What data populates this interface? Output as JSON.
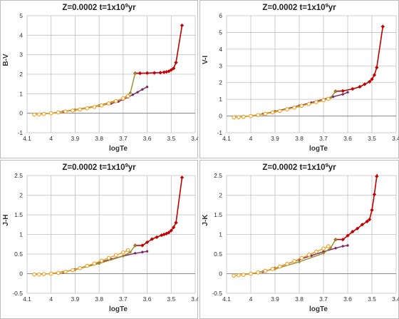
{
  "chart_data": [
    {
      "type": "line",
      "title": "Z=0.0002   t=1x10⁹yr",
      "title_base": "Z=0.0002   t=1x10",
      "title_exp": "9",
      "title_unit": "yr",
      "xlabel": "logTe",
      "ylabel": "B-V",
      "xlim": [
        4.1,
        3.4
      ],
      "ylim": [
        -1,
        5
      ],
      "x_ticks": [
        4.1,
        4,
        3.9,
        3.8,
        3.7,
        3.6,
        3.5,
        3.4
      ],
      "x_tick_labels": [
        "4.1",
        "4",
        "3.9",
        "3.8",
        "3.7",
        "3.6",
        "3.5",
        "3.4"
      ],
      "y_ticks": [
        -1,
        0,
        1,
        2,
        3,
        4,
        5
      ],
      "y_tick_labels": [
        "-1",
        "0",
        "1",
        "2",
        "3",
        "4",
        "5"
      ],
      "grid": true,
      "series": [
        {
          "color": "#c00000",
          "marker": "diamond",
          "x": [
            3.65,
            3.63,
            3.6,
            3.57,
            3.545,
            3.53,
            3.52,
            3.51,
            3.5,
            3.49,
            3.48,
            3.455
          ],
          "y": [
            2.05,
            2.05,
            2.06,
            2.07,
            2.08,
            2.1,
            2.12,
            2.15,
            2.22,
            2.3,
            2.6,
            4.5
          ]
        },
        {
          "color": "#7a2a66",
          "marker": "dot",
          "x": [
            4.0,
            3.95,
            3.9,
            3.85,
            3.8,
            3.75,
            3.72,
            3.7,
            3.68,
            3.66,
            3.64,
            3.62,
            3.6
          ],
          "y": [
            0.0,
            0.08,
            0.17,
            0.27,
            0.38,
            0.5,
            0.6,
            0.7,
            0.82,
            0.95,
            1.08,
            1.22,
            1.35
          ]
        },
        {
          "color": "#9c8a25",
          "marker": "dot",
          "x": [
            4.0,
            3.9,
            3.8,
            3.7,
            3.67,
            3.65
          ],
          "y": [
            0.0,
            0.18,
            0.4,
            0.75,
            1.05,
            2.05
          ]
        },
        {
          "color": "#f0a020",
          "marker": "circle",
          "x": [
            4.07,
            4.05,
            4.03,
            4.0,
            3.97,
            3.94,
            3.91,
            3.88,
            3.85,
            3.82,
            3.79,
            3.76,
            3.73,
            3.7,
            3.68
          ],
          "y": [
            -0.07,
            -0.06,
            -0.04,
            0.0,
            0.04,
            0.09,
            0.14,
            0.19,
            0.25,
            0.32,
            0.4,
            0.5,
            0.62,
            0.76,
            0.88
          ]
        }
      ]
    },
    {
      "type": "line",
      "title": "Z=0.0002   t=1x10⁹yr",
      "title_base": "Z=0.0002   t=1x10",
      "title_exp": "9",
      "title_unit": "yr",
      "xlabel": "logTe",
      "ylabel": "V-I",
      "xlim": [
        4.1,
        3.4
      ],
      "ylim": [
        -1,
        6
      ],
      "x_ticks": [
        4.1,
        4,
        3.9,
        3.8,
        3.7,
        3.6,
        3.5,
        3.4
      ],
      "x_tick_labels": [
        "4.1",
        "4",
        "3.9",
        "3.8",
        "3.7",
        "3.6",
        "3.5",
        "3.4"
      ],
      "y_ticks": [
        -1,
        0,
        1,
        2,
        3,
        4,
        5,
        6
      ],
      "y_tick_labels": [
        "-1",
        "0",
        "1",
        "2",
        "3",
        "4",
        "5",
        "6"
      ],
      "grid": true,
      "series": [
        {
          "color": "#c00000",
          "marker": "diamond",
          "x": [
            3.65,
            3.62,
            3.58,
            3.55,
            3.53,
            3.51,
            3.5,
            3.49,
            3.48,
            3.455
          ],
          "y": [
            1.48,
            1.5,
            1.62,
            1.75,
            1.9,
            2.05,
            2.2,
            2.45,
            2.9,
            5.35
          ]
        },
        {
          "color": "#7a2a66",
          "marker": "dot",
          "x": [
            4.0,
            3.95,
            3.9,
            3.85,
            3.8,
            3.75,
            3.7,
            3.66,
            3.62,
            3.6
          ],
          "y": [
            0.0,
            0.12,
            0.28,
            0.45,
            0.62,
            0.8,
            1.0,
            1.15,
            1.3,
            1.42
          ]
        },
        {
          "color": "#9c8a25",
          "marker": "dot",
          "x": [
            4.0,
            3.9,
            3.8,
            3.7,
            3.67,
            3.65
          ],
          "y": [
            0.0,
            0.26,
            0.58,
            0.92,
            1.1,
            1.48
          ]
        },
        {
          "color": "#f0a020",
          "marker": "circle",
          "x": [
            4.07,
            4.05,
            4.03,
            4.0,
            3.97,
            3.94,
            3.91,
            3.88,
            3.85,
            3.82,
            3.79,
            3.76,
            3.73,
            3.7,
            3.68
          ],
          "y": [
            -0.08,
            -0.07,
            -0.05,
            0.0,
            0.06,
            0.13,
            0.21,
            0.3,
            0.4,
            0.5,
            0.61,
            0.72,
            0.83,
            0.95,
            1.03
          ]
        }
      ]
    },
    {
      "type": "line",
      "title": "Z=0.0002   t=1x10⁹yr",
      "title_base": "Z=0.0002   t=1x10",
      "title_exp": "9",
      "title_unit": "yr",
      "xlabel": "logTe",
      "ylabel": "J-H",
      "xlim": [
        4.1,
        3.4
      ],
      "ylim": [
        -0.5,
        2.5
      ],
      "x_ticks": [
        4.1,
        4,
        3.9,
        3.8,
        3.7,
        3.6,
        3.5,
        3.4
      ],
      "x_tick_labels": [
        "4.1",
        "4",
        "3.9",
        "3.8",
        "3.7",
        "3.6",
        "3.5",
        "3.4"
      ],
      "y_ticks": [
        -0.5,
        0,
        0.5,
        1,
        1.5,
        2,
        2.5
      ],
      "y_tick_labels": [
        "-0.5",
        "0",
        "0.5",
        "1",
        "1.5",
        "2",
        "2.5"
      ],
      "grid": true,
      "series": [
        {
          "color": "#c00000",
          "marker": "diamond",
          "x": [
            3.65,
            3.62,
            3.6,
            3.58,
            3.56,
            3.54,
            3.53,
            3.52,
            3.51,
            3.5,
            3.49,
            3.48,
            3.455
          ],
          "y": [
            0.72,
            0.72,
            0.8,
            0.88,
            0.93,
            0.98,
            1.0,
            1.02,
            1.05,
            1.1,
            1.18,
            1.3,
            2.45
          ]
        },
        {
          "color": "#7a2a66",
          "marker": "dot",
          "x": [
            4.0,
            3.95,
            3.9,
            3.85,
            3.8,
            3.75,
            3.7,
            3.65,
            3.62,
            3.6
          ],
          "y": [
            0.0,
            0.04,
            0.11,
            0.2,
            0.29,
            0.37,
            0.45,
            0.52,
            0.55,
            0.57
          ]
        },
        {
          "color": "#9c8a25",
          "marker": "dot",
          "x": [
            4.0,
            3.9,
            3.8,
            3.7,
            3.67,
            3.65
          ],
          "y": [
            0.0,
            0.1,
            0.26,
            0.45,
            0.55,
            0.72
          ]
        },
        {
          "color": "#f0a020",
          "marker": "circle",
          "x": [
            4.07,
            4.05,
            4.03,
            4.0,
            3.97,
            3.94,
            3.91,
            3.88,
            3.85,
            3.82,
            3.79,
            3.76,
            3.73,
            3.7,
            3.68
          ],
          "y": [
            -0.02,
            -0.02,
            -0.01,
            0.0,
            0.02,
            0.05,
            0.09,
            0.14,
            0.2,
            0.26,
            0.33,
            0.4,
            0.47,
            0.54,
            0.6
          ]
        }
      ]
    },
    {
      "type": "line",
      "title": "Z=0.0002   t=1x10⁹yr",
      "title_base": "Z=0.0002   t=1x10",
      "title_exp": "9",
      "title_unit": "yr",
      "xlabel": "logTe",
      "ylabel": "J-K",
      "xlim": [
        4.1,
        3.4
      ],
      "ylim": [
        -0.5,
        2.5
      ],
      "x_ticks": [
        4.1,
        4,
        3.9,
        3.8,
        3.7,
        3.6,
        3.5,
        3.4
      ],
      "x_tick_labels": [
        "4.1",
        "4",
        "3.9",
        "3.8",
        "3.7",
        "3.6",
        "3.5",
        "3.4"
      ],
      "y_ticks": [
        -0.5,
        0,
        0.5,
        1,
        1.5,
        2,
        2.5
      ],
      "y_tick_labels": [
        "-0.5",
        "0",
        "0.5",
        "1",
        "1.5",
        "2",
        "2.5"
      ],
      "grid": true,
      "series": [
        {
          "color": "#c00000",
          "marker": "diamond",
          "x": [
            3.65,
            3.62,
            3.6,
            3.58,
            3.56,
            3.54,
            3.52,
            3.51,
            3.5,
            3.49,
            3.48,
            3.47
          ],
          "y": [
            0.87,
            0.87,
            0.97,
            1.07,
            1.15,
            1.25,
            1.33,
            1.38,
            1.62,
            2.02,
            2.48,
            2.8
          ]
        },
        {
          "color": "#7a2a66",
          "marker": "dot",
          "x": [
            4.0,
            3.95,
            3.9,
            3.85,
            3.8,
            3.75,
            3.7,
            3.65,
            3.62,
            3.6
          ],
          "y": [
            0.0,
            0.05,
            0.14,
            0.25,
            0.36,
            0.46,
            0.56,
            0.65,
            0.7,
            0.72
          ]
        },
        {
          "color": "#9c8a25",
          "marker": "dot",
          "x": [
            4.0,
            3.9,
            3.8,
            3.7,
            3.67,
            3.65
          ],
          "y": [
            0.0,
            0.12,
            0.3,
            0.52,
            0.66,
            0.87
          ]
        },
        {
          "color": "#f0a020",
          "marker": "circle",
          "x": [
            4.07,
            4.05,
            4.03,
            4.0,
            3.97,
            3.94,
            3.91,
            3.88,
            3.85,
            3.82,
            3.79,
            3.76,
            3.73,
            3.7,
            3.68
          ],
          "y": [
            -0.05,
            -0.04,
            -0.03,
            0.0,
            0.03,
            0.07,
            0.12,
            0.18,
            0.25,
            0.32,
            0.4,
            0.48,
            0.56,
            0.64,
            0.7
          ]
        }
      ]
    }
  ]
}
